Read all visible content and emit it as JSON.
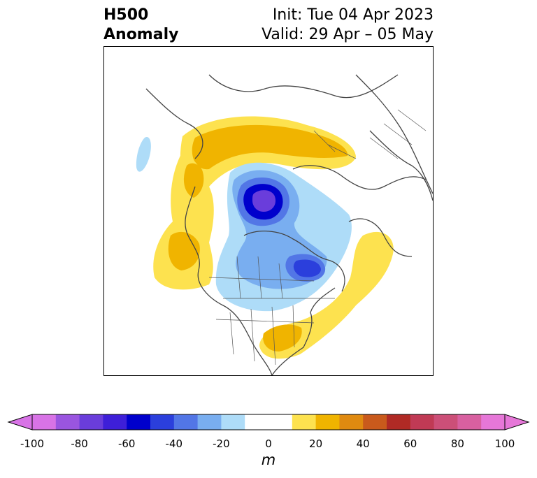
{
  "header": {
    "title_line1": "H500",
    "title_line2": "Anomaly",
    "init_label": "Init: Tue 04 Apr 2023",
    "valid_label": "Valid: 29 Apr – 05 May"
  },
  "map": {
    "projection": "polar stereographic (North Pole)",
    "features": [
      "coastlines",
      "country borders",
      "US state borders",
      "Canadian province borders"
    ],
    "anomalies": [
      {
        "region": "northern Eurasia / Siberia",
        "sign": "positive",
        "level_m": 20
      },
      {
        "region": "Alaska / North Pacific",
        "sign": "positive",
        "level_m": 20
      },
      {
        "region": "North Atlantic",
        "sign": "positive",
        "level_m": 10
      },
      {
        "region": "southeastern United States",
        "sign": "positive",
        "level_m": 20
      },
      {
        "region": "Arctic Ocean / Barents Sea",
        "sign": "negative",
        "level_m": -80
      },
      {
        "region": "northern Canada / Hudson Bay",
        "sign": "negative",
        "level_m": -60
      },
      {
        "region": "northern Pacific (small)",
        "sign": "negative",
        "level_m": -10
      }
    ]
  },
  "colorbar": {
    "label": "m",
    "min": -100,
    "max": 100,
    "step": 10,
    "extend": "both",
    "ticks": [
      "-100",
      "-80",
      "-60",
      "-40",
      "-20",
      "0",
      "20",
      "40",
      "60",
      "80",
      "100"
    ],
    "colors": [
      "#d873e6",
      "#9a55e0",
      "#6a3ddb",
      "#3e1fd8",
      "#0000cc",
      "#2b3fdc",
      "#5276e6",
      "#79aef0",
      "#aedcf8",
      "#ffffff",
      "#ffffff",
      "#fde24f",
      "#f0b400",
      "#e08a10",
      "#c95a1c",
      "#b02a25",
      "#c03a55",
      "#cc4f78",
      "#d860a0",
      "#e677d8"
    ],
    "low_extend_color": "#d873e6",
    "high_extend_color": "#e677d8"
  }
}
